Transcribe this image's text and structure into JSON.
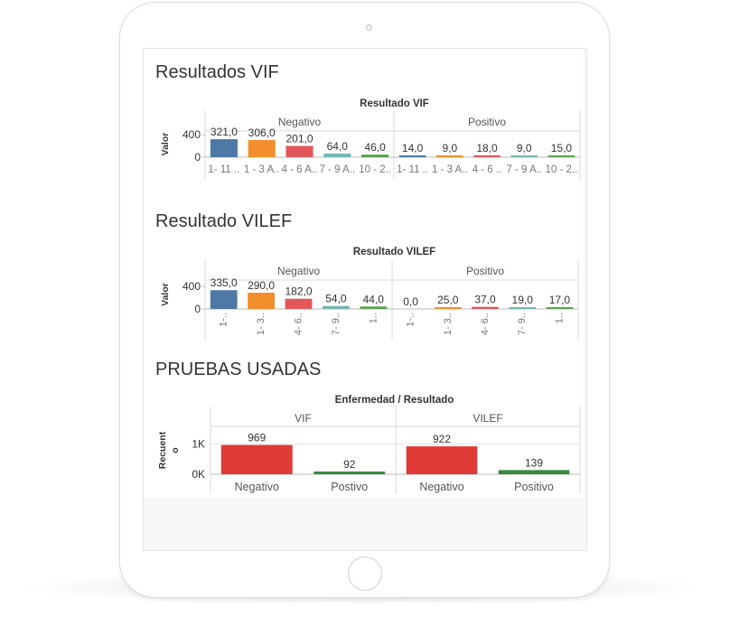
{
  "device": {
    "frame": "tablet",
    "orientation": "portrait"
  },
  "colors": {
    "group1": "#4e79a7",
    "group2": "#f28e2b",
    "group3": "#e15759",
    "group4": "#76b7b2",
    "group5": "#59a14f",
    "negativo_bar": "#e03a36",
    "positivo_bar": "#3a8a3f",
    "grid": "#e6e6e6",
    "axis_text": "#555555"
  },
  "sections": {
    "vif": {
      "heading": "Resultados VIF"
    },
    "vilef": {
      "heading": "Resultado VILEF"
    },
    "pruebas": {
      "heading": "PRUEBAS USADAS"
    }
  },
  "chart_data": [
    {
      "type": "bar",
      "title": "Resultado VIF",
      "ylabel": "Valor",
      "yticks": [
        "400",
        "0"
      ],
      "ylim": [
        0,
        400
      ],
      "panels": [
        "Negativo",
        "Positivo"
      ],
      "categories": [
        "1- 11 ..",
        "1 - 3 A..",
        "4 - 6 A..",
        "7 - 9 A..",
        "10 - 2.."
      ],
      "series": [
        {
          "panel": "Negativo",
          "values": [
            321.0,
            306.0,
            201.0,
            64.0,
            46.0
          ],
          "labels": [
            "321,0",
            "306,0",
            "201,0",
            "64,0",
            "46,0"
          ]
        },
        {
          "panel": "Positivo",
          "values": [
            14.0,
            9.0,
            18.0,
            9.0,
            15.0
          ],
          "labels": [
            "14,0",
            "9,0",
            "18,0",
            "9,0",
            "15,0"
          ]
        }
      ],
      "panel_categories": {
        "Negativo": [
          "1- 11 ..",
          "1 - 3 A..",
          "4 - 6 A..",
          "7 - 9 A..",
          "10 - 2.."
        ],
        "Positivo": [
          "1- 11 ..",
          "1 - 3 A..",
          "4 - 6 ..",
          "7 - 9 A..",
          "10 - 2.."
        ]
      }
    },
    {
      "type": "bar",
      "title": "Resultado VILEF",
      "ylabel": "Valor",
      "yticks": [
        "400",
        "0"
      ],
      "ylim": [
        0,
        400
      ],
      "panels": [
        "Negativo",
        "Positivo"
      ],
      "categories": [
        "1-..",
        "1- 3..",
        "4- 6..",
        "7- 9..",
        "1.."
      ],
      "series": [
        {
          "panel": "Negativo",
          "values": [
            335.0,
            290.0,
            182.0,
            54.0,
            44.0
          ],
          "labels": [
            "335,0",
            "290,0",
            "182,0",
            "54,0",
            "44,0"
          ]
        },
        {
          "panel": "Positivo",
          "values": [
            0.0,
            25.0,
            37.0,
            19.0,
            17.0
          ],
          "labels": [
            "0,0",
            "25,0",
            "37,0",
            "19,0",
            "17,0"
          ]
        }
      ]
    },
    {
      "type": "bar",
      "title": "Enfermedad / Resultado",
      "ylabel": "Recuento",
      "ylabel_lines": [
        "Recuent",
        "o"
      ],
      "yticks": [
        "1K",
        "0K"
      ],
      "ylim": [
        0,
        1000
      ],
      "panels": [
        "VIF",
        "VILEF"
      ],
      "panel_categories": {
        "VIF": [
          "Negativo",
          "Postivo"
        ],
        "VILEF": [
          "Negativo",
          "Positivo"
        ]
      },
      "series": [
        {
          "panel": "VIF",
          "values": [
            969,
            92
          ],
          "labels": [
            "969",
            "92"
          ]
        },
        {
          "panel": "VILEF",
          "values": [
            922,
            139
          ],
          "labels": [
            "922",
            "139"
          ]
        }
      ]
    }
  ]
}
